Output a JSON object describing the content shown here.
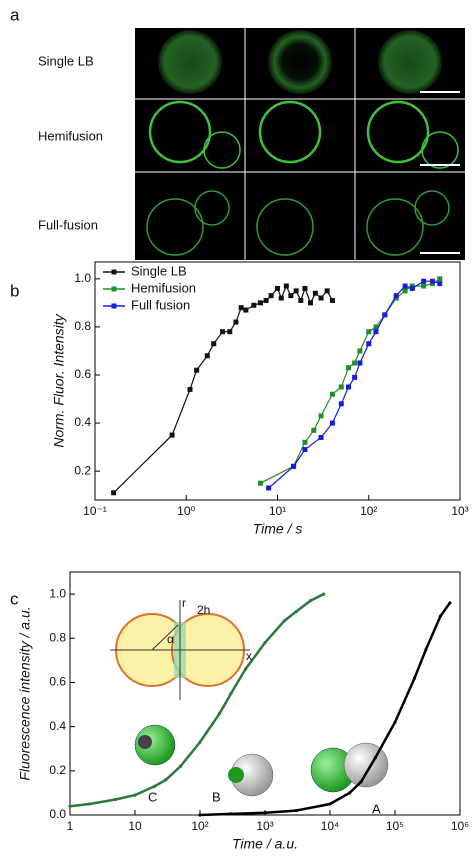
{
  "panel_a": {
    "label": "a",
    "rows": [
      "Single LB",
      "Hemifusion",
      "Full-fusion"
    ]
  },
  "chart_data": [
    {
      "type": "line",
      "panel_label": "b",
      "x_label": "Time / s",
      "y_label": "Norm. Fluor. Intensity",
      "log_x": true,
      "legend": "upper left",
      "xlim": [
        0.1,
        1000
      ],
      "xticks": [
        {
          "value": 0.1,
          "label": "10⁻¹"
        },
        {
          "value": 1,
          "label": "10⁰"
        },
        {
          "value": 10,
          "label": "10¹"
        },
        {
          "value": 100,
          "label": "10²"
        },
        {
          "value": 1000,
          "label": "10³"
        }
      ],
      "ylim": [
        0.08,
        1.07
      ],
      "yticks": [
        0.2,
        0.4,
        0.6,
        0.8,
        {
          "value": 1,
          "label": "1.0"
        }
      ],
      "series": [
        {
          "name": "Single LB",
          "color": "#111111",
          "x": [
            0.16,
            0.7,
            1.1,
            1.3,
            1.7,
            2.0,
            2.5,
            3.0,
            3.5,
            4.0,
            4.5,
            5.5,
            6.5,
            7.5,
            8.5,
            10,
            11,
            12.5,
            14,
            16,
            18,
            20,
            23,
            26,
            30,
            35,
            40
          ],
          "values": [
            0.11,
            0.35,
            0.54,
            0.62,
            0.68,
            0.73,
            0.78,
            0.78,
            0.82,
            0.88,
            0.87,
            0.89,
            0.9,
            0.91,
            0.93,
            0.96,
            0.92,
            0.97,
            0.93,
            0.95,
            0.91,
            0.96,
            0.9,
            0.94,
            0.92,
            0.95,
            0.91
          ]
        },
        {
          "name": "Hemifusion",
          "color": "#1f8f2a",
          "x": [
            6.5,
            15,
            20,
            25,
            30,
            40,
            50,
            60,
            70,
            80,
            100,
            120,
            150,
            200,
            250,
            300,
            400,
            500,
            600
          ],
          "values": [
            0.15,
            0.22,
            0.32,
            0.37,
            0.43,
            0.52,
            0.55,
            0.63,
            0.65,
            0.7,
            0.78,
            0.8,
            0.85,
            0.92,
            0.95,
            0.97,
            0.97,
            0.98,
            1.0
          ]
        },
        {
          "name": "Full fusion",
          "color": "#1a1adb",
          "x": [
            8,
            15,
            20,
            30,
            40,
            50,
            60,
            70,
            80,
            100,
            120,
            150,
            200,
            250,
            300,
            400,
            500,
            600
          ],
          "values": [
            0.13,
            0.22,
            0.29,
            0.34,
            0.4,
            0.48,
            0.55,
            0.59,
            0.65,
            0.73,
            0.78,
            0.85,
            0.93,
            0.97,
            0.96,
            0.99,
            0.99,
            0.98
          ]
        }
      ]
    },
    {
      "type": "line",
      "panel_label": "c",
      "x_label": "Time / a.u.",
      "y_label": "Fluorescence intensity / a.u.",
      "log_x": true,
      "xlim": [
        1,
        1000000
      ],
      "xticks": [
        1,
        10,
        {
          "value": 100,
          "label": "10²"
        },
        {
          "value": 1000,
          "label": "10³"
        },
        {
          "value": 10000,
          "label": "10⁴"
        },
        {
          "value": 100000,
          "label": "10⁵"
        },
        {
          "value": 1000000,
          "label": "10⁶"
        }
      ],
      "ylim": [
        0,
        1.1
      ],
      "yticks": [
        {
          "value": 0,
          "label": "0.0"
        },
        0.2,
        0.4,
        0.6,
        0.8,
        {
          "value": 1,
          "label": "1.0"
        }
      ],
      "annotations": [
        "C",
        "B",
        "A"
      ],
      "inset_labels": [
        "r",
        "2h",
        "α",
        "x"
      ],
      "series": [
        {
          "color": "#2a7a3a",
          "x": [
            1,
            2,
            5,
            10,
            20,
            30,
            50,
            100,
            200,
            300,
            500,
            1000,
            2000,
            3000,
            5000,
            8000
          ],
          "values": [
            0.04,
            0.05,
            0.07,
            0.09,
            0.13,
            0.16,
            0.22,
            0.33,
            0.46,
            0.55,
            0.66,
            0.78,
            0.88,
            0.92,
            0.97,
            1.0
          ]
        },
        {
          "color": "#000000",
          "x": [
            100,
            300,
            1000,
            3000,
            10000,
            20000,
            30000,
            50000,
            100000,
            200000,
            300000,
            500000,
            700000
          ],
          "values": [
            0.0,
            0.005,
            0.01,
            0.02,
            0.05,
            0.1,
            0.15,
            0.26,
            0.42,
            0.62,
            0.75,
            0.9,
            0.96
          ]
        }
      ]
    }
  ]
}
